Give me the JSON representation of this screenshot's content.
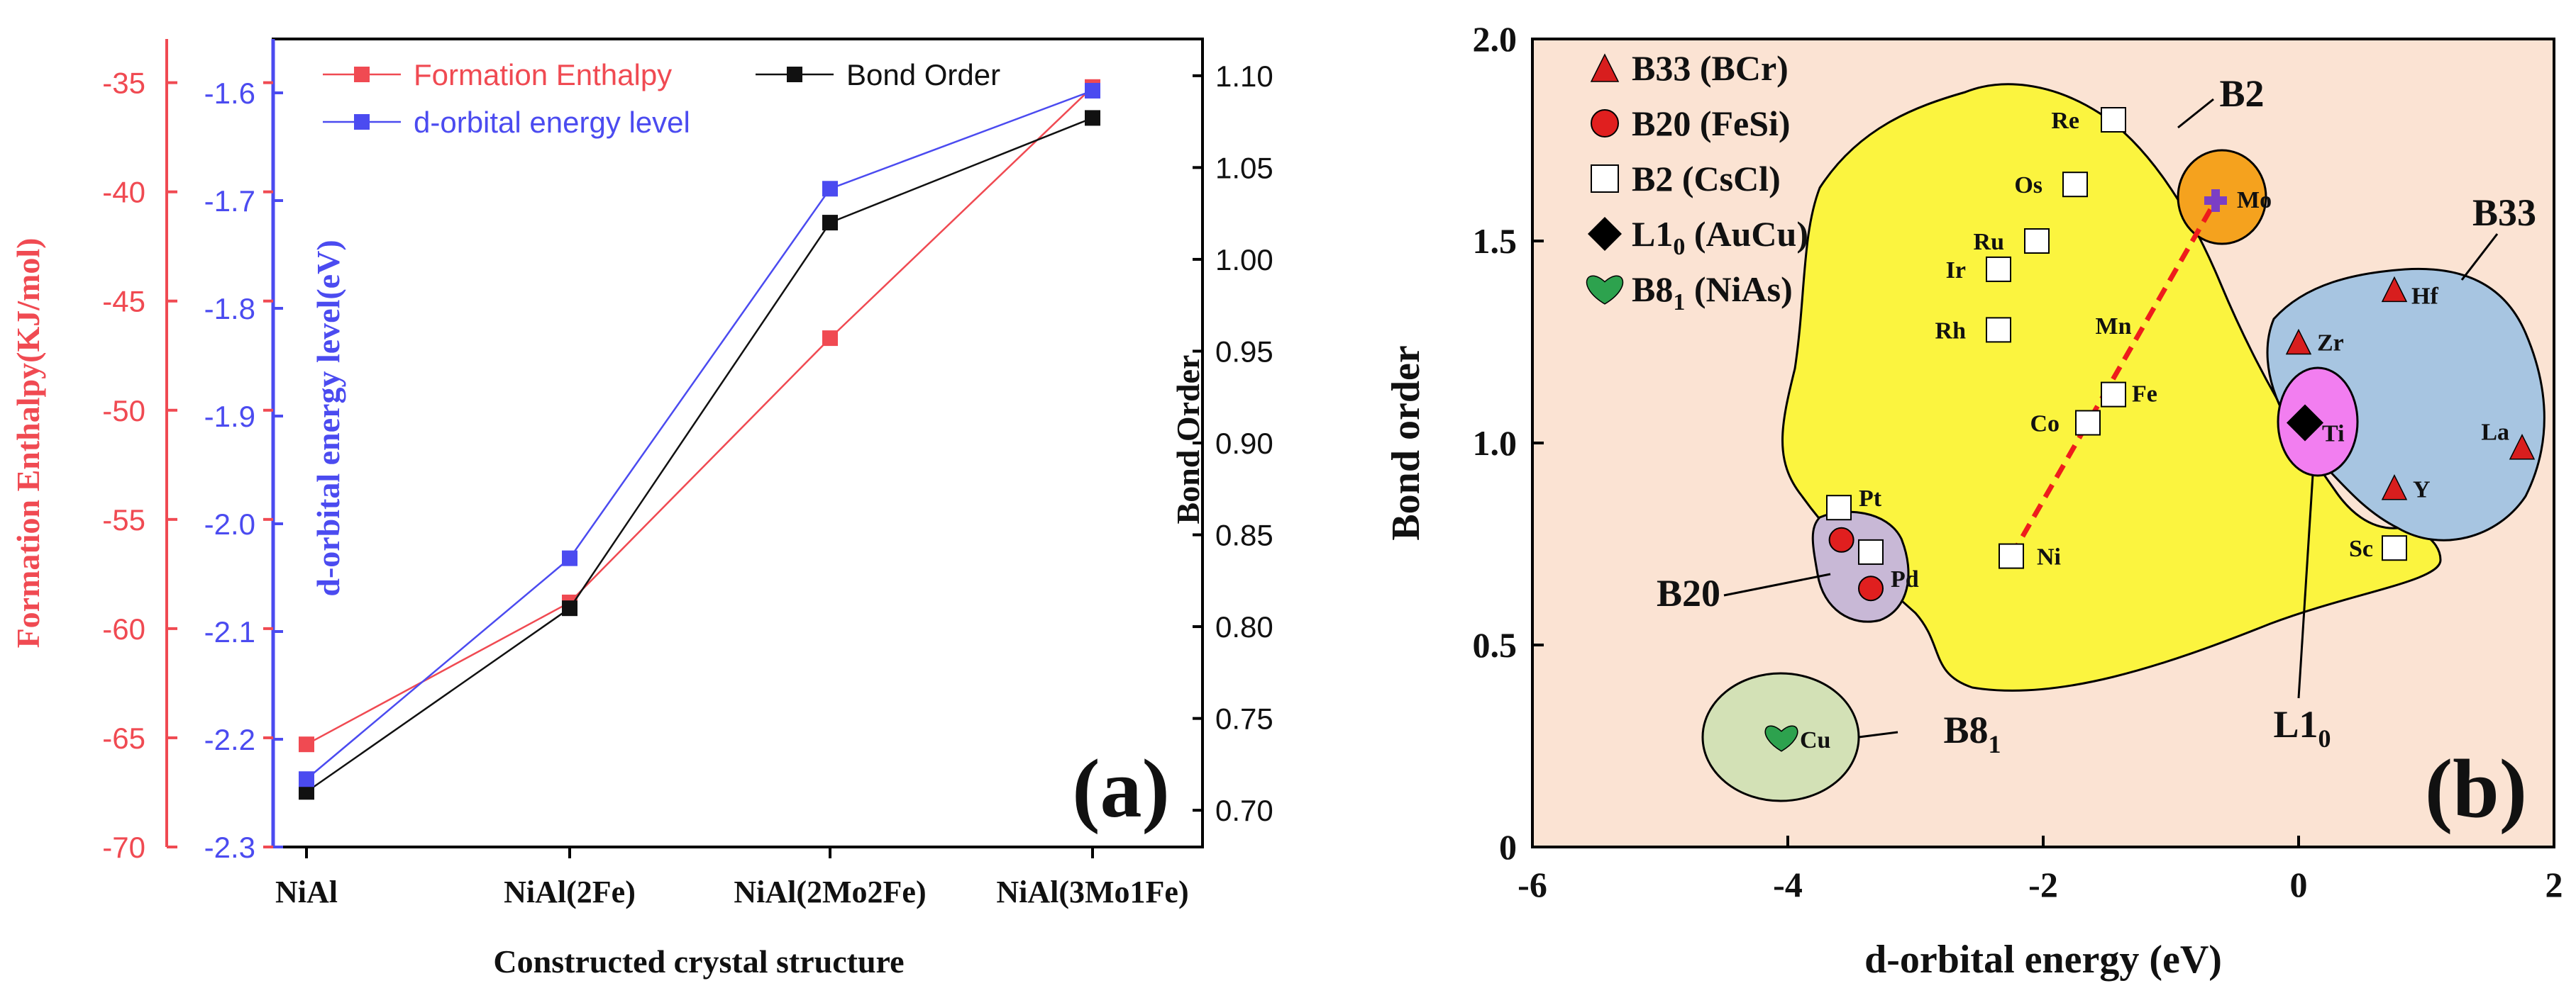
{
  "colors": {
    "enthalpy": "#f04a52",
    "dorbital": "#4b4bf0",
    "bond": "#111111",
    "panel_b_bg": "#fbe3d3",
    "b2_region": "#fbf43f",
    "b33_region": "#a7c5e1",
    "b20_region": "#c8b8d6",
    "b81_region": "#d3e1b6",
    "mo_circle": "#f5a21e",
    "l10_circle": "#f27ef0",
    "triangle": "#d81e1e",
    "b20_marker": "#e01f1f",
    "heart": "#2da24e",
    "dashed_line": "#ee1c1c"
  },
  "chart_data": [
    {
      "panel": "(a)",
      "type": "line",
      "categories": [
        "NiAl",
        "NiAl(2Fe)",
        "NiAl(2Mo2Fe)",
        "NiAl(3Mo1Fe)"
      ],
      "xlabel": "Constructed crystal structure",
      "axes": {
        "left_outer": {
          "label": "Formation Enthalpy(KJ/mol)",
          "range": [
            -70,
            -33
          ],
          "ticks": [
            -70,
            -65,
            -60,
            -55,
            -50,
            -45,
            -40,
            -35
          ]
        },
        "left_inner": {
          "label": "d-orbital energy level(eV)",
          "range": [
            -2.3,
            -1.55
          ],
          "ticks": [
            -2.3,
            -2.2,
            -2.1,
            -2.0,
            -1.9,
            -1.8,
            -1.7,
            -1.6
          ],
          "tick_labels": [
            "-2.3",
            "-2.2",
            "-2.1",
            "-2.0",
            "-1.9",
            "-1.8",
            "-1.7",
            "-1.6"
          ]
        },
        "right": {
          "label": "Bond Order",
          "range": [
            0.68,
            1.12
          ],
          "ticks": [
            0.7,
            0.75,
            0.8,
            0.85,
            0.9,
            0.95,
            1.0,
            1.05,
            1.1
          ],
          "tick_labels": [
            "0.70",
            "0.75",
            "0.80",
            "0.85",
            "0.90",
            "0.95",
            "1.00",
            "1.05",
            "1.10"
          ]
        }
      },
      "series": [
        {
          "name": "Formation Enthalpy",
          "axis": "left_outer",
          "values": [
            -65.3,
            -58.8,
            -46.7,
            -35.2
          ]
        },
        {
          "name": "Bond Order",
          "axis": "right",
          "values": [
            0.71,
            0.81,
            1.02,
            1.077
          ]
        },
        {
          "name": "d-orbital energy level",
          "axis": "left_inner",
          "values": [
            -2.237,
            -2.032,
            -1.689,
            -1.598
          ]
        }
      ],
      "legend_placement": "top"
    },
    {
      "panel": "(b)",
      "type": "scatter",
      "xlabel": "d-orbital energy (eV)",
      "ylabel": "Bond order",
      "xlim": [
        -6,
        2
      ],
      "ylim": [
        0,
        2.0
      ],
      "xticks": [
        -6,
        -4,
        -2,
        0,
        2
      ],
      "yticks": [
        0,
        0.5,
        1.0,
        1.5,
        2.0
      ],
      "ytick_labels": [
        "0",
        "0.5",
        "1.0",
        "1.5",
        "2.0"
      ],
      "legend": [
        {
          "label": "B33 (BCr)",
          "marker": "triangle"
        },
        {
          "label": "B20 (FeSi)",
          "marker": "circle"
        },
        {
          "label": "B2  (CsCl)",
          "marker": "square"
        },
        {
          "label": "L1",
          "sub": "0",
          "suffix": " (AuCu)",
          "marker": "diamond"
        },
        {
          "label": "B8",
          "sub": "1",
          "suffix": " (NiAs)",
          "marker": "heart"
        }
      ],
      "points": [
        {
          "label": "Re",
          "x": -1.45,
          "y": 1.8,
          "marker": "square"
        },
        {
          "label": "Os",
          "x": -1.75,
          "y": 1.64,
          "marker": "square"
        },
        {
          "label": "Ru",
          "x": -2.05,
          "y": 1.5,
          "marker": "square"
        },
        {
          "label": "Ir",
          "x": -2.35,
          "y": 1.43,
          "marker": "square"
        },
        {
          "label": "Rh",
          "x": -2.35,
          "y": 1.28,
          "marker": "square"
        },
        {
          "label": "Fe",
          "x": -1.45,
          "y": 1.12,
          "marker": "square"
        },
        {
          "label": "Co",
          "x": -1.65,
          "y": 1.05,
          "marker": "square"
        },
        {
          "label": "Ni",
          "x": -2.25,
          "y": 0.72,
          "marker": "square"
        },
        {
          "label": "Pt",
          "x": -3.6,
          "y": 0.84,
          "marker": "square"
        },
        {
          "label": "Pt",
          "x": -3.35,
          "y": 0.73,
          "marker": "square"
        },
        {
          "label": "Sc",
          "x": 0.75,
          "y": 0.74,
          "marker": "square"
        },
        {
          "label": "Pt",
          "x": -3.58,
          "y": 0.76,
          "marker": "circle"
        },
        {
          "label": "Pd",
          "x": -3.35,
          "y": 0.64,
          "marker": "circle"
        },
        {
          "label": "Hf",
          "x": 0.75,
          "y": 1.38,
          "marker": "triangle"
        },
        {
          "label": "Zr",
          "x": 0.0,
          "y": 1.25,
          "marker": "triangle"
        },
        {
          "label": "La",
          "x": 1.75,
          "y": 0.99,
          "marker": "triangle"
        },
        {
          "label": "Y",
          "x": 0.75,
          "y": 0.89,
          "marker": "triangle"
        },
        {
          "label": "Ti",
          "x": 0.05,
          "y": 1.05,
          "marker": "diamond"
        },
        {
          "label": "Cu",
          "x": -4.05,
          "y": 0.27,
          "marker": "heart"
        },
        {
          "label": "Mo",
          "x": -0.65,
          "y": 1.6,
          "marker": "cross"
        },
        {
          "label": "Mn",
          "x": -1.45,
          "y": 1.27,
          "marker": "none"
        }
      ],
      "dashed_line": {
        "from": [
          -2.25,
          0.72
        ],
        "to": [
          -0.65,
          1.6
        ]
      },
      "region_labels": [
        {
          "label": "B2",
          "sub": ""
        },
        {
          "label": "B33",
          "sub": ""
        },
        {
          "label": "B20",
          "sub": ""
        },
        {
          "label": "L1",
          "sub": "0"
        },
        {
          "label": "B8",
          "sub": "1"
        }
      ]
    }
  ],
  "panel_a_label": "(a)",
  "panel_b_label": "(b)"
}
